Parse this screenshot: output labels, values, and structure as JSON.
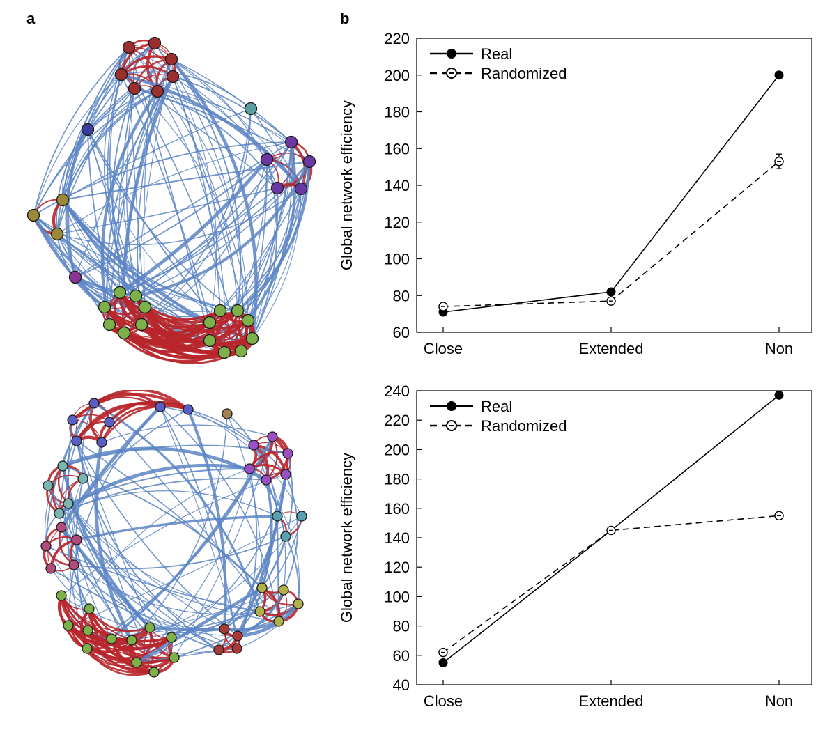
{
  "panels": {
    "a": "a",
    "b": "b"
  },
  "colors": {
    "inter_edge": "#5b84c4",
    "intra_edge": "#b8262b",
    "real_marker": "#000000",
    "random_marker": "#ffffff"
  },
  "networks": [
    {
      "name": "network-top",
      "node_colors": [
        "#9b2f2f",
        "#5b9ea0",
        "#3a3f9c",
        "#6b37a0",
        "#9a8a38",
        "#8a3590",
        "#7eb04a"
      ]
    },
    {
      "name": "network-bottom",
      "node_colors": [
        "#5a5fc4",
        "#a58050",
        "#9a4fc4",
        "#7ab5b0",
        "#b04c7a",
        "#5aa0b0",
        "#7eb04a",
        "#b1b04a",
        "#a83a3a"
      ]
    }
  ],
  "chart_data": [
    {
      "type": "line",
      "categories": [
        "Close",
        "Extended",
        "Non"
      ],
      "series": [
        {
          "name": "Real",
          "values": [
            71,
            82,
            200
          ],
          "style": "solid",
          "marker": "filled"
        },
        {
          "name": "Randomized",
          "values": [
            74,
            77,
            153
          ],
          "error": [
            0,
            0,
            4
          ],
          "style": "dashed",
          "marker": "open"
        }
      ],
      "ylabel": "Global network efficiency",
      "ylim": [
        60,
        220
      ],
      "yticks": [
        60,
        80,
        100,
        120,
        140,
        160,
        180,
        200,
        220
      ],
      "legend": "top-left",
      "grid": false
    },
    {
      "type": "line",
      "categories": [
        "Close",
        "Extended",
        "Non"
      ],
      "series": [
        {
          "name": "Real",
          "values": [
            55,
            145,
            237
          ],
          "style": "solid",
          "marker": "filled"
        },
        {
          "name": "Randomized",
          "values": [
            62,
            145,
            155
          ],
          "style": "dashed",
          "marker": "open"
        }
      ],
      "ylabel": "Global network efficiency",
      "ylim": [
        40,
        240
      ],
      "yticks": [
        40,
        60,
        80,
        100,
        120,
        140,
        160,
        180,
        200,
        220,
        240
      ],
      "legend": "top-left",
      "grid": false
    }
  ]
}
